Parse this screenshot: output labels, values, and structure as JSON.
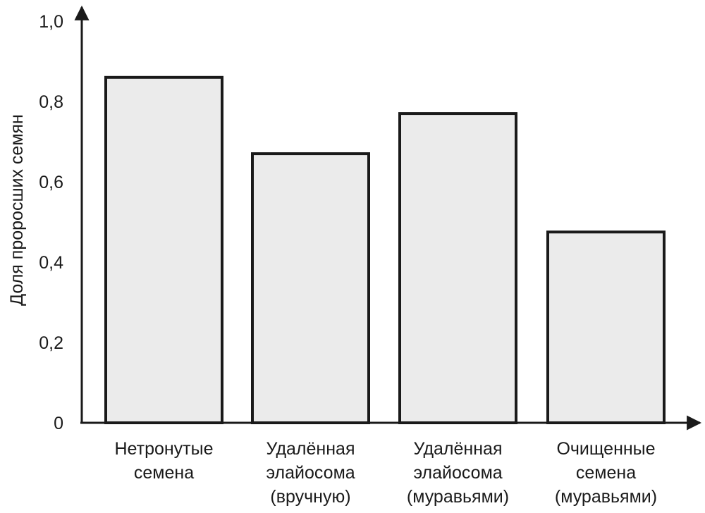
{
  "chart_data": {
    "type": "bar",
    "title": "",
    "xlabel": "",
    "ylabel": "Доля проросших семян",
    "ylim": [
      0,
      1.0
    ],
    "yticks": [
      {
        "value": 0,
        "label": "0"
      },
      {
        "value": 0.2,
        "label": "0,2"
      },
      {
        "value": 0.4,
        "label": "0,4"
      },
      {
        "value": 0.6,
        "label": "0,6"
      },
      {
        "value": 0.8,
        "label": "0,8"
      },
      {
        "value": 1.0,
        "label": "1,0"
      }
    ],
    "categories": [
      [
        "Нетронутые",
        "семена"
      ],
      [
        "Удалённая",
        "элайосома",
        "(вручную)"
      ],
      [
        "Удалённая",
        "элайосома",
        "(муравьями)"
      ],
      [
        "Очищенные",
        "семена",
        "(муравьями)"
      ]
    ],
    "values": [
      0.86,
      0.67,
      0.77,
      0.475
    ],
    "grid": false,
    "colors": {
      "bar_fill": "#ebebeb",
      "bar_stroke": "#1a1a1a",
      "axis": "#1a1a1a"
    }
  }
}
